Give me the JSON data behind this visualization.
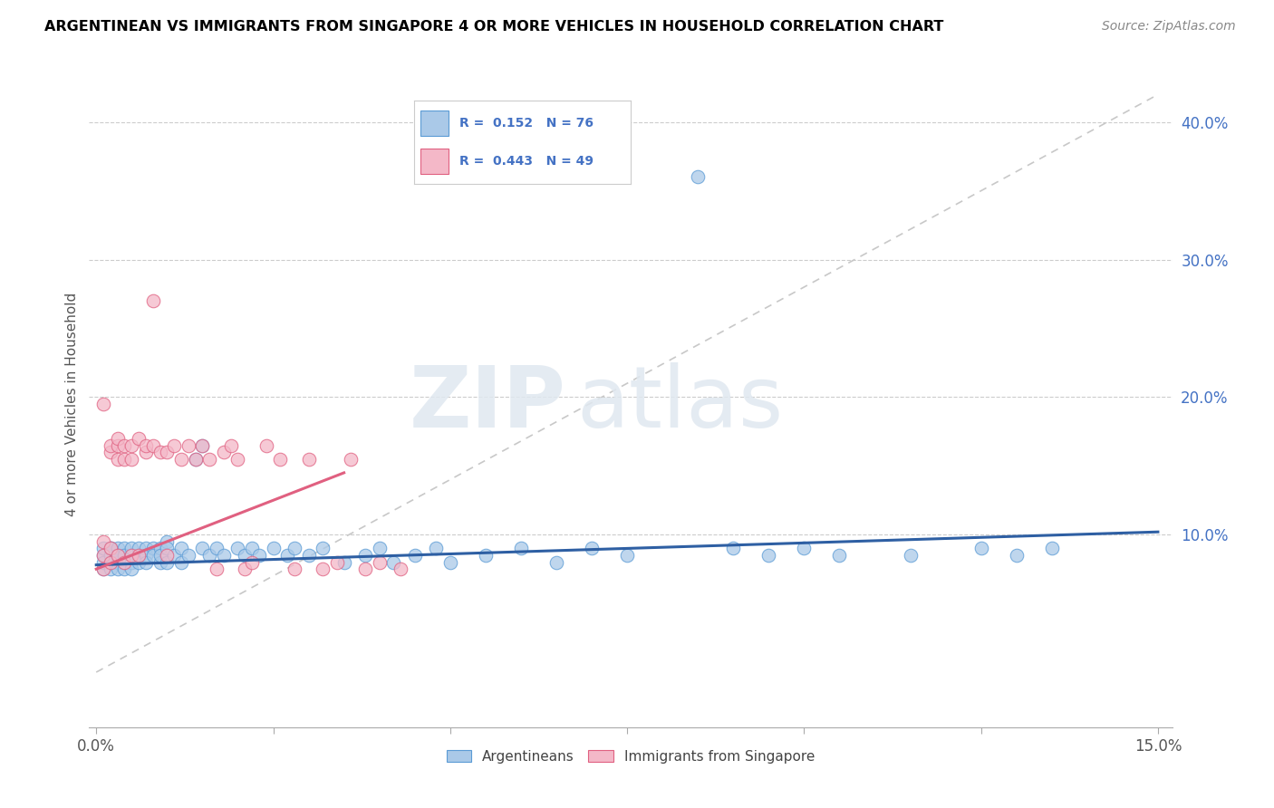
{
  "title": "ARGENTINEAN VS IMMIGRANTS FROM SINGAPORE 4 OR MORE VEHICLES IN HOUSEHOLD CORRELATION CHART",
  "source": "Source: ZipAtlas.com",
  "ylabel": "4 or more Vehicles in Household",
  "xlim": [
    -0.001,
    0.152
  ],
  "ylim": [
    -0.04,
    0.43
  ],
  "xtick_vals": [
    0.0,
    0.025,
    0.05,
    0.075,
    0.1,
    0.125,
    0.15
  ],
  "xticklabels": [
    "0.0%",
    "",
    "",
    "",
    "",
    "",
    "15.0%"
  ],
  "ytick_vals": [
    0.0,
    0.1,
    0.2,
    0.3,
    0.4
  ],
  "yticklabels": [
    "",
    "10.0%",
    "20.0%",
    "30.0%",
    "40.0%"
  ],
  "blue_color": "#aac9e8",
  "blue_edge": "#5b9bd5",
  "pink_color": "#f4b8c8",
  "pink_edge": "#e06080",
  "blue_line_color": "#2e5fa3",
  "pink_line_color": "#d94f70",
  "diagonal_color": "#c8c8c8",
  "watermark_zip": "ZIP",
  "watermark_atlas": "atlas",
  "legend_text_color": "#4472c4",
  "title_color": "#000000",
  "source_color": "#888888",
  "ylabel_color": "#555555",
  "blue_trend": [
    0.0,
    0.15,
    0.078,
    0.102
  ],
  "pink_trend": [
    0.0,
    0.05,
    0.075,
    0.175
  ],
  "blue_x": [
    0.001,
    0.001,
    0.001,
    0.001,
    0.002,
    0.002,
    0.002,
    0.002,
    0.002,
    0.003,
    0.003,
    0.003,
    0.003,
    0.003,
    0.004,
    0.004,
    0.004,
    0.004,
    0.005,
    0.005,
    0.005,
    0.005,
    0.006,
    0.006,
    0.006,
    0.007,
    0.007,
    0.007,
    0.008,
    0.008,
    0.009,
    0.009,
    0.009,
    0.01,
    0.01,
    0.01,
    0.011,
    0.012,
    0.012,
    0.013,
    0.014,
    0.015,
    0.015,
    0.016,
    0.017,
    0.018,
    0.02,
    0.021,
    0.022,
    0.023,
    0.025,
    0.027,
    0.028,
    0.03,
    0.032,
    0.035,
    0.038,
    0.04,
    0.042,
    0.045,
    0.048,
    0.05,
    0.055,
    0.06,
    0.065,
    0.07,
    0.075,
    0.085,
    0.09,
    0.095,
    0.1,
    0.105,
    0.115,
    0.125,
    0.13,
    0.135
  ],
  "blue_y": [
    0.085,
    0.09,
    0.075,
    0.08,
    0.085,
    0.09,
    0.08,
    0.075,
    0.09,
    0.085,
    0.08,
    0.09,
    0.075,
    0.085,
    0.08,
    0.09,
    0.085,
    0.075,
    0.085,
    0.09,
    0.08,
    0.075,
    0.085,
    0.09,
    0.08,
    0.09,
    0.085,
    0.08,
    0.09,
    0.085,
    0.08,
    0.09,
    0.085,
    0.095,
    0.08,
    0.09,
    0.085,
    0.09,
    0.08,
    0.085,
    0.155,
    0.165,
    0.09,
    0.085,
    0.09,
    0.085,
    0.09,
    0.085,
    0.09,
    0.085,
    0.09,
    0.085,
    0.09,
    0.085,
    0.09,
    0.08,
    0.085,
    0.09,
    0.08,
    0.085,
    0.09,
    0.08,
    0.085,
    0.09,
    0.08,
    0.09,
    0.085,
    0.36,
    0.09,
    0.085,
    0.09,
    0.085,
    0.085,
    0.09,
    0.085,
    0.09
  ],
  "pink_x": [
    0.001,
    0.001,
    0.001,
    0.001,
    0.002,
    0.002,
    0.002,
    0.002,
    0.003,
    0.003,
    0.003,
    0.003,
    0.004,
    0.004,
    0.004,
    0.005,
    0.005,
    0.005,
    0.006,
    0.006,
    0.007,
    0.007,
    0.008,
    0.008,
    0.009,
    0.01,
    0.01,
    0.011,
    0.012,
    0.013,
    0.014,
    0.015,
    0.016,
    0.017,
    0.018,
    0.019,
    0.02,
    0.021,
    0.022,
    0.024,
    0.026,
    0.028,
    0.03,
    0.032,
    0.034,
    0.036,
    0.038,
    0.04,
    0.043
  ],
  "pink_y": [
    0.075,
    0.085,
    0.095,
    0.195,
    0.08,
    0.09,
    0.16,
    0.165,
    0.085,
    0.155,
    0.165,
    0.17,
    0.08,
    0.155,
    0.165,
    0.085,
    0.155,
    0.165,
    0.085,
    0.17,
    0.16,
    0.165,
    0.27,
    0.165,
    0.16,
    0.085,
    0.16,
    0.165,
    0.155,
    0.165,
    0.155,
    0.165,
    0.155,
    0.075,
    0.16,
    0.165,
    0.155,
    0.075,
    0.08,
    0.165,
    0.155,
    0.075,
    0.155,
    0.075,
    0.08,
    0.155,
    0.075,
    0.08,
    0.075
  ]
}
